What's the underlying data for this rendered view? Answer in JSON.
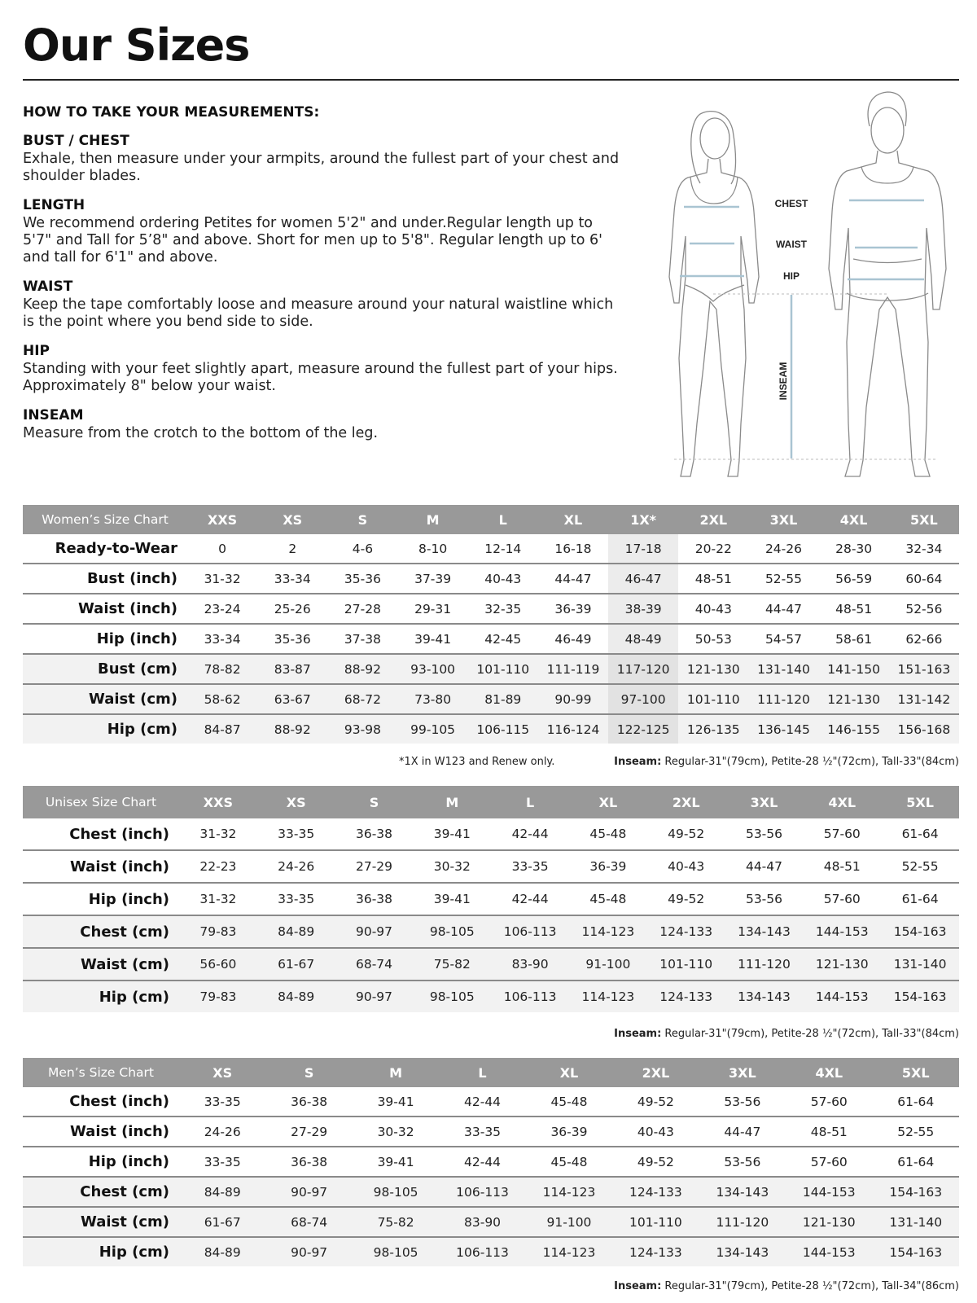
{
  "title": "Our Sizes",
  "guide": {
    "heading": "HOW TO TAKE YOUR MEASUREMENTS:",
    "sections": [
      {
        "title": "BUST / CHEST",
        "text": "Exhale, then measure under your armpits, around the fullest part of your chest and shoulder blades."
      },
      {
        "title": "LENGTH",
        "text": "We recommend ordering Petites for women 5'2\" and under.Regular length up to 5'7\" and Tall for 5’8\" and above. Short for men up to 5'8\". Regular length up to 6' and tall for 6'1\" and above."
      },
      {
        "title": "WAIST",
        "text": "Keep the tape comfortably loose and measure around your natural waistline which is the point where you bend side to side."
      },
      {
        "title": "HIP",
        "text": "Standing with your feet slightly apart, measure around the fullest part of your hips. Approximately 8\" below your waist."
      },
      {
        "title": "INSEAM",
        "text": "Measure from the crotch to the bottom of the leg."
      }
    ]
  },
  "figure": {
    "chest": "CHEST",
    "waist": "WAIST",
    "hip": "HIP",
    "inseam": "INSEAM",
    "measure_color": "#a9c4d2"
  },
  "women": {
    "label": "Women’s Size Chart",
    "sizes": [
      "XXS",
      "XS",
      "S",
      "M",
      "L",
      "XL",
      "1X*",
      "2XL",
      "3XL",
      "4XL",
      "5XL"
    ],
    "highlight_size": "1X*",
    "rows": [
      {
        "label": "Ready-to-Wear",
        "values": [
          "0",
          "2",
          "4-6",
          "8-10",
          "12-14",
          "16-18",
          "17-18",
          "20-22",
          "24-26",
          "28-30",
          "32-34"
        ]
      },
      {
        "label": "Bust (inch)",
        "values": [
          "31-32",
          "33-34",
          "35-36",
          "37-39",
          "40-43",
          "44-47",
          "46-47",
          "48-51",
          "52-55",
          "56-59",
          "60-64"
        ]
      },
      {
        "label": "Waist (inch)",
        "values": [
          "23-24",
          "25-26",
          "27-28",
          "29-31",
          "32-35",
          "36-39",
          "38-39",
          "40-43",
          "44-47",
          "48-51",
          "52-56"
        ]
      },
      {
        "label": "Hip (inch)",
        "values": [
          "33-34",
          "35-36",
          "37-38",
          "39-41",
          "42-45",
          "46-49",
          "48-49",
          "50-53",
          "54-57",
          "58-61",
          "62-66"
        ]
      },
      {
        "label": "Bust (cm)",
        "values": [
          "78-82",
          "83-87",
          "88-92",
          "93-100",
          "101-110",
          "111-119",
          "117-120",
          "121-130",
          "131-140",
          "141-150",
          "151-163"
        ]
      },
      {
        "label": "Waist (cm)",
        "values": [
          "58-62",
          "63-67",
          "68-72",
          "73-80",
          "81-89",
          "90-99",
          "97-100",
          "101-110",
          "111-120",
          "121-130",
          "131-142"
        ]
      },
      {
        "label": "Hip (cm)",
        "values": [
          "84-87",
          "88-92",
          "93-98",
          "99-105",
          "106-115",
          "116-124",
          "122-125",
          "126-135",
          "136-145",
          "146-155",
          "156-168"
        ]
      }
    ],
    "footnote": "*1X in W123 and Renew only.",
    "inseam_label": "Inseam:",
    "inseam_text": " Regular-31\"(79cm), Petite-28 ½\"(72cm), Tall-33\"(84cm)"
  },
  "unisex": {
    "label": "Unisex Size Chart",
    "sizes": [
      "XXS",
      "XS",
      "S",
      "M",
      "L",
      "XL",
      "2XL",
      "3XL",
      "4XL",
      "5XL"
    ],
    "rows": [
      {
        "label": "Chest (inch)",
        "values": [
          "31-32",
          "33-35",
          "36-38",
          "39-41",
          "42-44",
          "45-48",
          "49-52",
          "53-56",
          "57-60",
          "61-64"
        ]
      },
      {
        "label": "Waist (inch)",
        "values": [
          "22-23",
          "24-26",
          "27-29",
          "30-32",
          "33-35",
          "36-39",
          "40-43",
          "44-47",
          "48-51",
          "52-55"
        ]
      },
      {
        "label": "Hip (inch)",
        "values": [
          "31-32",
          "33-35",
          "36-38",
          "39-41",
          "42-44",
          "45-48",
          "49-52",
          "53-56",
          "57-60",
          "61-64"
        ]
      },
      {
        "label": "Chest (cm)",
        "values": [
          "79-83",
          "84-89",
          "90-97",
          "98-105",
          "106-113",
          "114-123",
          "124-133",
          "134-143",
          "144-153",
          "154-163"
        ]
      },
      {
        "label": "Waist (cm)",
        "values": [
          "56-60",
          "61-67",
          "68-74",
          "75-82",
          "83-90",
          "91-100",
          "101-110",
          "111-120",
          "121-130",
          "131-140"
        ]
      },
      {
        "label": "Hip (cm)",
        "values": [
          "79-83",
          "84-89",
          "90-97",
          "98-105",
          "106-113",
          "114-123",
          "124-133",
          "134-143",
          "144-153",
          "154-163"
        ]
      }
    ],
    "inseam_label": "Inseam:",
    "inseam_text": " Regular-31\"(79cm), Petite-28 ½\"(72cm), Tall-33\"(84cm)"
  },
  "men": {
    "label": "Men’s Size Chart",
    "sizes": [
      "XS",
      "S",
      "M",
      "L",
      "XL",
      "2XL",
      "3XL",
      "4XL",
      "5XL"
    ],
    "rows": [
      {
        "label": "Chest (inch)",
        "values": [
          "33-35",
          "36-38",
          "39-41",
          "42-44",
          "45-48",
          "49-52",
          "53-56",
          "57-60",
          "61-64"
        ]
      },
      {
        "label": "Waist (inch)",
        "values": [
          "24-26",
          "27-29",
          "30-32",
          "33-35",
          "36-39",
          "40-43",
          "44-47",
          "48-51",
          "52-55"
        ]
      },
      {
        "label": "Hip (inch)",
        "values": [
          "33-35",
          "36-38",
          "39-41",
          "42-44",
          "45-48",
          "49-52",
          "53-56",
          "57-60",
          "61-64"
        ]
      },
      {
        "label": "Chest (cm)",
        "values": [
          "84-89",
          "90-97",
          "98-105",
          "106-113",
          "114-123",
          "124-133",
          "134-143",
          "144-153",
          "154-163"
        ]
      },
      {
        "label": "Waist (cm)",
        "values": [
          "61-67",
          "68-74",
          "75-82",
          "83-90",
          "91-100",
          "101-110",
          "111-120",
          "121-130",
          "131-140"
        ]
      },
      {
        "label": "Hip (cm)",
        "values": [
          "84-89",
          "90-97",
          "98-105",
          "106-113",
          "114-123",
          "124-133",
          "134-143",
          "144-153",
          "154-163"
        ]
      }
    ],
    "inseam_label": "Inseam:",
    "inseam_text": " Regular-31\"(79cm), Petite-28 ½\"(72cm), Tall-34\"(86cm)"
  }
}
